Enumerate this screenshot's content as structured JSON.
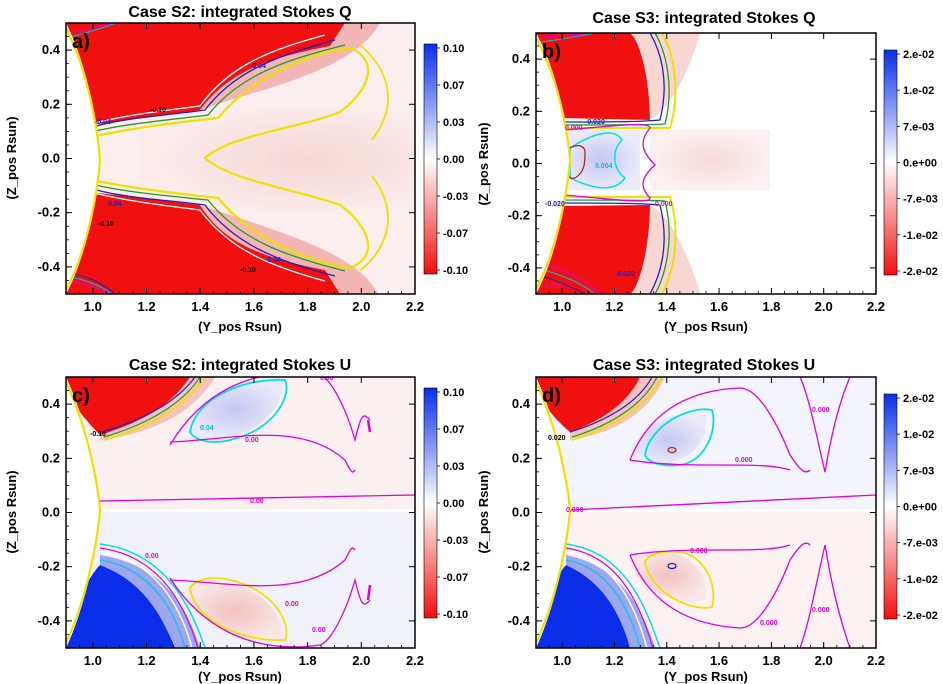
{
  "chart_data": [
    {
      "type": "heatmap",
      "panel_label": "a)",
      "title": "Case S2: integrated Stokes Q",
      "xlabel": "(Y_pos Rsun)",
      "ylabel": "(Z_pos Rsun)",
      "xlim": [
        0.9,
        2.2
      ],
      "ylim": [
        -0.5,
        0.5
      ],
      "xticks": [
        "1.0",
        "1.2",
        "1.4",
        "1.6",
        "1.8",
        "2.0",
        "2.2"
      ],
      "yticks": [
        "0.4",
        "0.2",
        "0.0",
        "-0.2",
        "-0.4"
      ],
      "colorbar": {
        "range": [
          -0.1,
          0.1
        ],
        "labels": [
          "0.10",
          "0.07",
          "0.03",
          "0.00",
          "-0.03",
          "-0.07",
          "-0.10"
        ]
      },
      "contour_labels": [
        "-0.04",
        "-0.10",
        "-0.04",
        "0.04",
        "-0.10",
        "-0.10",
        "-0.04"
      ],
      "colors": {
        "positive": "#1030e8",
        "negative": "#f01010",
        "sun_limb": "#f0e000",
        "contour_magenta": "#e000e0",
        "contour_cyan": "#00e0e0",
        "contour_yellow": "#f0e000",
        "contour_blue": "#2020c0"
      }
    },
    {
      "type": "heatmap",
      "panel_label": "b)",
      "title": "Case S3: integrated Stokes Q",
      "xlabel": "(Y_pos Rsun)",
      "ylabel": "(Z_pos Rsun)",
      "xlim": [
        0.9,
        2.2
      ],
      "ylim": [
        -0.5,
        0.5
      ],
      "xticks": [
        "1.0",
        "1.2",
        "1.4",
        "1.6",
        "1.8",
        "2.0",
        "2.2"
      ],
      "yticks": [
        "0.4",
        "0.2",
        "0.0",
        "-0.2",
        "-0.4"
      ],
      "colorbar": {
        "range": [
          -0.02,
          0.02
        ],
        "labels": [
          "2.e-02",
          "1.e-02",
          "7.e-03",
          "0.e+00",
          "-7.e-03",
          "-1.e-02",
          "-2.e-02"
        ]
      },
      "contour_labels": [
        "-0.020",
        "0.000",
        "0.004",
        "0.000",
        "-0.020",
        "-0.020",
        "0.000"
      ],
      "colors": {
        "positive": "#1030e8",
        "negative": "#f01010",
        "sun_limb": "#f0e000"
      }
    },
    {
      "type": "heatmap",
      "panel_label": "c)",
      "title": "Case S2: integrated Stokes U",
      "xlabel": "(Y_pos Rsun)",
      "ylabel": "(Z_pos Rsun)",
      "xlim": [
        0.9,
        2.2
      ],
      "ylim": [
        -0.5,
        0.5
      ],
      "xticks": [
        "1.0",
        "1.2",
        "1.4",
        "1.6",
        "1.8",
        "2.0",
        "2.2"
      ],
      "yticks": [
        "0.4",
        "0.2",
        "0.0",
        "-0.2",
        "-0.4"
      ],
      "colorbar": {
        "range": [
          -0.1,
          0.1
        ],
        "labels": [
          "0.10",
          "0.07",
          "0.03",
          "0.00",
          "-0.03",
          "-0.07",
          "-0.10"
        ]
      },
      "contour_labels": [
        "0.00",
        "-0.10",
        "0.04",
        "0.00",
        "0.00",
        "0.00",
        "0.00",
        "0.00"
      ],
      "colors": {
        "positive": "#1030e8",
        "negative": "#f01010",
        "sun_limb": "#f0e000"
      }
    },
    {
      "type": "heatmap",
      "panel_label": "d)",
      "title": "Case S3: integrated Stokes U",
      "xlabel": "(Y_pos Rsun)",
      "ylabel": "(Z_pos Rsun)",
      "xlim": [
        0.9,
        2.2
      ],
      "ylim": [
        -0.5,
        0.5
      ],
      "xticks": [
        "1.0",
        "1.2",
        "1.4",
        "1.6",
        "1.8",
        "2.0",
        "2.2"
      ],
      "yticks": [
        "0.4",
        "0.2",
        "0.0",
        "-0.2",
        "-0.4"
      ],
      "colorbar": {
        "range": [
          -0.02,
          0.02
        ],
        "labels": [
          "2.e-02",
          "1.e-02",
          "7.e-03",
          "0.e+00",
          "-7.e-03",
          "-1.e-02",
          "-2.e-02"
        ]
      },
      "contour_labels": [
        "0.020",
        "0.000",
        "0.000",
        "0.000",
        "0.000",
        "0.000",
        "0.000"
      ],
      "colors": {
        "positive": "#1030e8",
        "negative": "#f01010",
        "sun_limb": "#f0e000"
      }
    }
  ]
}
